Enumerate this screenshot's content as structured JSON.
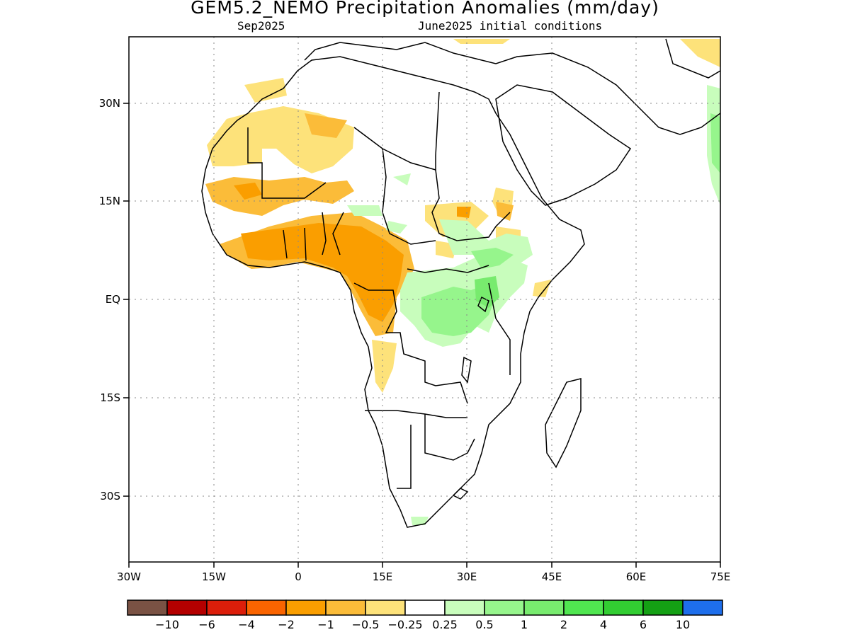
{
  "header": {
    "title": "GEM5.2_NEMO Precipitation Anomalies (mm/day)",
    "valid_month": "Sep2025",
    "init_conditions": "June2025 initial conditions"
  },
  "map": {
    "lon_ticks": [
      "30W",
      "15W",
      "0",
      "15E",
      "30E",
      "45E",
      "60E",
      "75E"
    ],
    "lat_ticks": [
      "30N",
      "15N",
      "EQ",
      "15S",
      "30S"
    ],
    "lon_values": [
      -30,
      -15,
      0,
      15,
      30,
      45,
      60,
      75
    ],
    "lat_values": [
      30,
      15,
      0,
      -15,
      -30
    ],
    "lon_range": [
      -30,
      75
    ],
    "lat_range": [
      -40,
      40
    ],
    "gridlines": "dotted"
  },
  "colorbar": {
    "colors": [
      "#7a5244",
      "#b40000",
      "#dc1e0a",
      "#fa6400",
      "#fa9e00",
      "#fbbc39",
      "#fde27a",
      "#ffffff",
      "#c8fdbc",
      "#96f58c",
      "#78eb6e",
      "#50e650",
      "#32cd32",
      "#14a014",
      "#1e6eeb"
    ],
    "labels": [
      "−10",
      "−6",
      "−4",
      "−2",
      "−1",
      "−0.5",
      "−0.25",
      "0.25",
      "0.5",
      "1",
      "2",
      "4",
      "6",
      "10"
    ]
  }
}
